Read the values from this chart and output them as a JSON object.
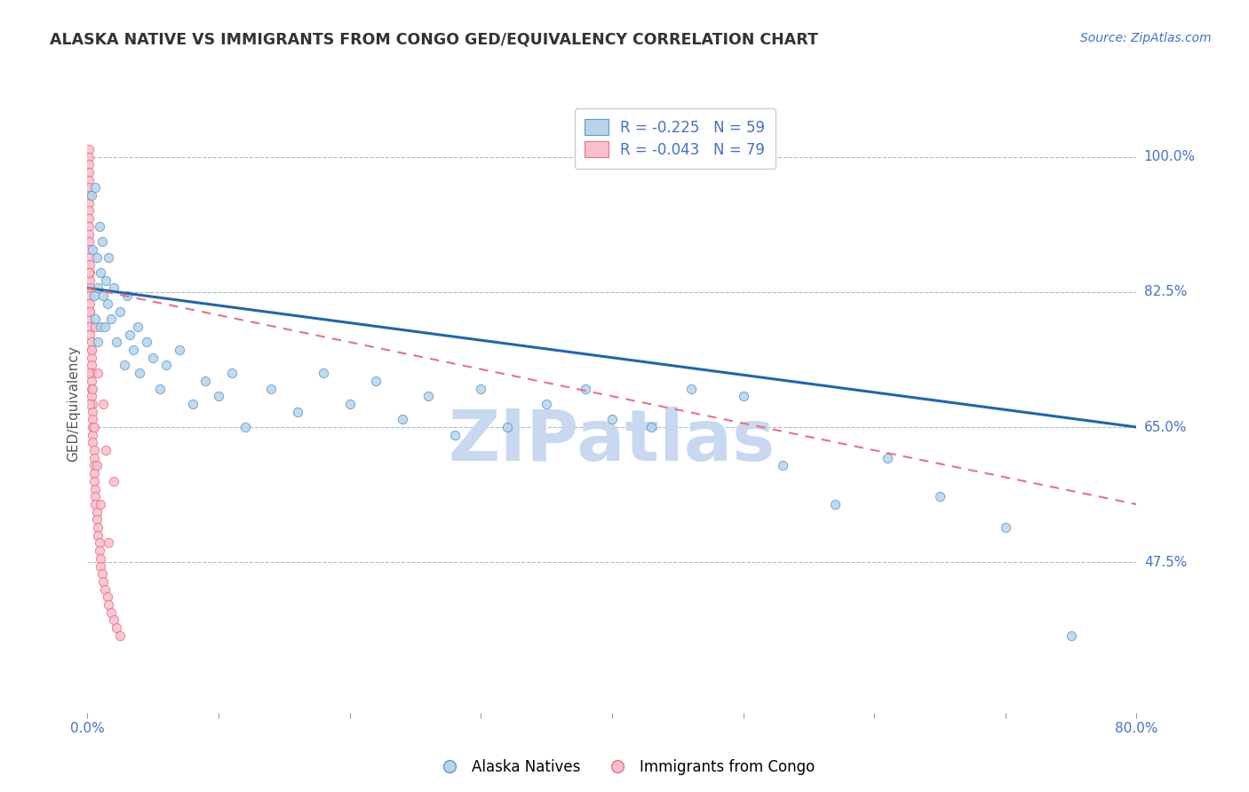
{
  "title": "ALASKA NATIVE VS IMMIGRANTS FROM CONGO GED/EQUIVALENCY CORRELATION CHART",
  "source": "Source: ZipAtlas.com",
  "ylabel": "GED/Equivalency",
  "yticks": [
    0.475,
    0.65,
    0.825,
    1.0
  ],
  "ytick_labels": [
    "47.5%",
    "65.0%",
    "82.5%",
    "100.0%"
  ],
  "xmin": 0.0,
  "xmax": 0.8,
  "ymin": 0.28,
  "ymax": 1.08,
  "legend_entry1": "R = -0.225   N = 59",
  "legend_entry2": "R = -0.043   N = 79",
  "legend_label1": "Alaska Natives",
  "legend_label2": "Immigrants from Congo",
  "series1_facecolor": "#b8d4ea",
  "series1_edgecolor": "#5b9dc8",
  "series2_facecolor": "#f9bfcc",
  "series2_edgecolor": "#e8708a",
  "trendline1_color": "#2166ac",
  "trendline2_color": "#e8708a",
  "watermark_color": "#c8d8f0",
  "title_color": "#333333",
  "axis_label_color": "#4472c4",
  "source_color": "#4472c4",
  "background_color": "#ffffff",
  "alaska_x": [
    0.003,
    0.004,
    0.005,
    0.006,
    0.006,
    0.007,
    0.008,
    0.008,
    0.009,
    0.01,
    0.01,
    0.011,
    0.012,
    0.013,
    0.014,
    0.015,
    0.016,
    0.018,
    0.02,
    0.022,
    0.025,
    0.028,
    0.03,
    0.032,
    0.035,
    0.038,
    0.04,
    0.045,
    0.05,
    0.055,
    0.06,
    0.07,
    0.08,
    0.09,
    0.1,
    0.11,
    0.12,
    0.14,
    0.16,
    0.18,
    0.2,
    0.22,
    0.24,
    0.26,
    0.28,
    0.3,
    0.32,
    0.35,
    0.38,
    0.4,
    0.43,
    0.46,
    0.5,
    0.53,
    0.57,
    0.61,
    0.65,
    0.7,
    0.75
  ],
  "alaska_y": [
    0.95,
    0.88,
    0.82,
    0.96,
    0.79,
    0.87,
    0.83,
    0.76,
    0.91,
    0.85,
    0.78,
    0.89,
    0.82,
    0.78,
    0.84,
    0.81,
    0.87,
    0.79,
    0.83,
    0.76,
    0.8,
    0.73,
    0.82,
    0.77,
    0.75,
    0.78,
    0.72,
    0.76,
    0.74,
    0.7,
    0.73,
    0.75,
    0.68,
    0.71,
    0.69,
    0.72,
    0.65,
    0.7,
    0.67,
    0.72,
    0.68,
    0.71,
    0.66,
    0.69,
    0.64,
    0.7,
    0.65,
    0.68,
    0.7,
    0.66,
    0.65,
    0.7,
    0.69,
    0.6,
    0.55,
    0.61,
    0.56,
    0.52,
    0.38
  ],
  "congo_x": [
    0.001,
    0.001,
    0.001,
    0.001,
    0.001,
    0.001,
    0.001,
    0.001,
    0.001,
    0.001,
    0.001,
    0.001,
    0.001,
    0.001,
    0.002,
    0.002,
    0.002,
    0.002,
    0.002,
    0.002,
    0.002,
    0.002,
    0.002,
    0.002,
    0.002,
    0.003,
    0.003,
    0.003,
    0.003,
    0.003,
    0.003,
    0.003,
    0.003,
    0.004,
    0.004,
    0.004,
    0.004,
    0.004,
    0.004,
    0.005,
    0.005,
    0.005,
    0.005,
    0.005,
    0.006,
    0.006,
    0.006,
    0.007,
    0.007,
    0.008,
    0.008,
    0.009,
    0.009,
    0.01,
    0.01,
    0.011,
    0.012,
    0.013,
    0.015,
    0.016,
    0.018,
    0.02,
    0.022,
    0.025,
    0.001,
    0.001,
    0.002,
    0.002,
    0.003,
    0.004,
    0.005,
    0.006,
    0.007,
    0.008,
    0.01,
    0.012,
    0.014,
    0.016,
    0.02
  ],
  "congo_y": [
    1.01,
    1.0,
    0.99,
    0.98,
    0.97,
    0.96,
    0.95,
    0.94,
    0.93,
    0.92,
    0.91,
    0.9,
    0.89,
    0.88,
    0.87,
    0.86,
    0.85,
    0.84,
    0.83,
    0.82,
    0.81,
    0.8,
    0.79,
    0.78,
    0.77,
    0.76,
    0.75,
    0.74,
    0.73,
    0.72,
    0.71,
    0.7,
    0.69,
    0.68,
    0.67,
    0.66,
    0.65,
    0.64,
    0.63,
    0.62,
    0.61,
    0.6,
    0.59,
    0.58,
    0.57,
    0.56,
    0.55,
    0.54,
    0.53,
    0.52,
    0.51,
    0.5,
    0.49,
    0.48,
    0.47,
    0.46,
    0.45,
    0.44,
    0.43,
    0.42,
    0.41,
    0.4,
    0.39,
    0.38,
    0.85,
    0.72,
    0.8,
    0.68,
    0.75,
    0.7,
    0.65,
    0.78,
    0.6,
    0.72,
    0.55,
    0.68,
    0.62,
    0.5,
    0.58
  ],
  "ak_trend_x": [
    0.0,
    0.8
  ],
  "ak_trend_y": [
    0.83,
    0.65
  ],
  "cg_trend_x": [
    0.0,
    0.8
  ],
  "cg_trend_y": [
    0.83,
    0.55
  ]
}
